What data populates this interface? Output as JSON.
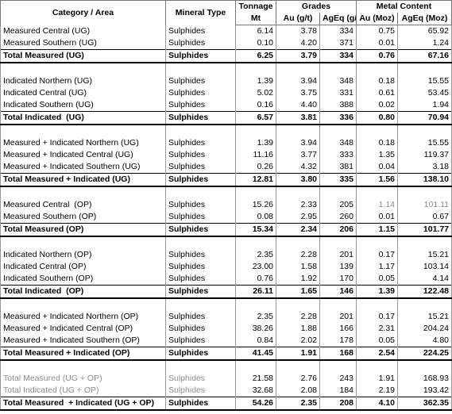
{
  "header": {
    "category": "Category / Area",
    "mineral": "Mineral Type",
    "tonnage": "Tonnage",
    "grades": "Grades",
    "metal": "Metal Content",
    "mt": "Mt",
    "au_gt": "Au (g/t)",
    "ageq_gt": "AgEq (g/t)",
    "au_moz": "Au (Moz)",
    "ageq_moz": "AgEq (Moz)"
  },
  "sections": [
    {
      "rows": [
        [
          "Measured Central (UG)",
          "Sulphides",
          "6.14",
          "3.78",
          "334",
          "0.75",
          "65.92"
        ],
        [
          "Measured Southern (UG)",
          "Sulphides",
          "0.10",
          "4.20",
          "371",
          "0.01",
          "1.24"
        ]
      ],
      "total": [
        "Total Measured (UG)",
        "Sulphides",
        "6.25",
        "3.79",
        "334",
        "0.76",
        "67.16"
      ]
    },
    {
      "rows": [
        [
          "Indicated Northern (UG)",
          "Sulphides",
          "1.39",
          "3.94",
          "348",
          "0.18",
          "15.55"
        ],
        [
          "Indicated Central (UG)",
          "Sulphides",
          "5.02",
          "3.75",
          "331",
          "0.61",
          "53.45"
        ],
        [
          "Indicated Southern (UG)",
          "Sulphides",
          "0.16",
          "4.40",
          "388",
          "0.02",
          "1.94"
        ]
      ],
      "total": [
        "Total Indicated  (UG)",
        "Sulphides",
        "6.57",
        "3.81",
        "336",
        "0.80",
        "70.94"
      ]
    },
    {
      "rows": [
        [
          "Measured + Indicated Northern (UG)",
          "Sulphides",
          "1.39",
          "3.94",
          "348",
          "0.18",
          "15.55"
        ],
        [
          "Measured + Indicated Central (UG)",
          "Sulphides",
          "11.16",
          "3.77",
          "333",
          "1.35",
          "119.37"
        ],
        [
          "Measured + Indicated Southern (UG)",
          "Sulphides",
          "0.26",
          "4.32",
          "381",
          "0.04",
          "3.18"
        ]
      ],
      "total": [
        "Total Measured + Indicated (UG)",
        "Sulphides",
        "12.81",
        "3.80",
        "335",
        "1.56",
        "138.10"
      ]
    },
    {
      "rows": [
        [
          "Measured Central  (OP)",
          "Sulphides",
          "15.26",
          "2.33",
          "205",
          "1.14",
          "101.11"
        ],
        [
          "Measured Southern (OP)",
          "Sulphides",
          "0.08",
          "2.95",
          "260",
          "0.01",
          "0.67"
        ]
      ],
      "total": [
        "Total Measured (OP)",
        "Sulphides",
        "15.34",
        "2.34",
        "206",
        "1.15",
        "101.77"
      ]
    },
    {
      "rows": [
        [
          "Indicated Northern (OP)",
          "Sulphides",
          "2.35",
          "2.28",
          "201",
          "0.17",
          "15.21"
        ],
        [
          "Indicated Central (OP)",
          "Sulphides",
          "23.00",
          "1.58",
          "139",
          "1.17",
          "103.14"
        ],
        [
          "Indicated Southern (OP)",
          "Sulphides",
          "0.76",
          "1.92",
          "170",
          "0.05",
          "4.14"
        ]
      ],
      "total": [
        "Total Indicated  (OP)",
        "Sulphides",
        "26.11",
        "1.65",
        "146",
        "1.39",
        "122.48"
      ]
    },
    {
      "rows": [
        [
          "Measured + Indicated Northern (OP)",
          "Sulphides",
          "2.35",
          "2.28",
          "201",
          "0.17",
          "15.21"
        ],
        [
          "Measured + Indicated Central (OP)",
          "Sulphides",
          "38.26",
          "1.88",
          "166",
          "2.31",
          "204.24"
        ],
        [
          "Measured + Indicated Southern (OP)",
          "Sulphides",
          "0.84",
          "2.02",
          "178",
          "0.05",
          "4.80"
        ]
      ],
      "total": [
        "Total Measured + Indicated (OP)",
        "Sulphides",
        "41.45",
        "1.91",
        "168",
        "2.54",
        "224.25"
      ]
    },
    {
      "rows": [
        [
          "Total Measured (UG + OP)",
          "Sulphides",
          "21.58",
          "2.76",
          "243",
          "1.91",
          "168.93"
        ],
        [
          "Total Indicated (UG + OP)",
          "Sulphides",
          "32.68",
          "2.08",
          "184",
          "2.19",
          "193.42"
        ]
      ],
      "total": [
        "Total Measured  + Indicated (UG + OP)",
        "Sulphides",
        "54.26",
        "2.35",
        "208",
        "4.10",
        "362.35"
      ]
    }
  ]
}
